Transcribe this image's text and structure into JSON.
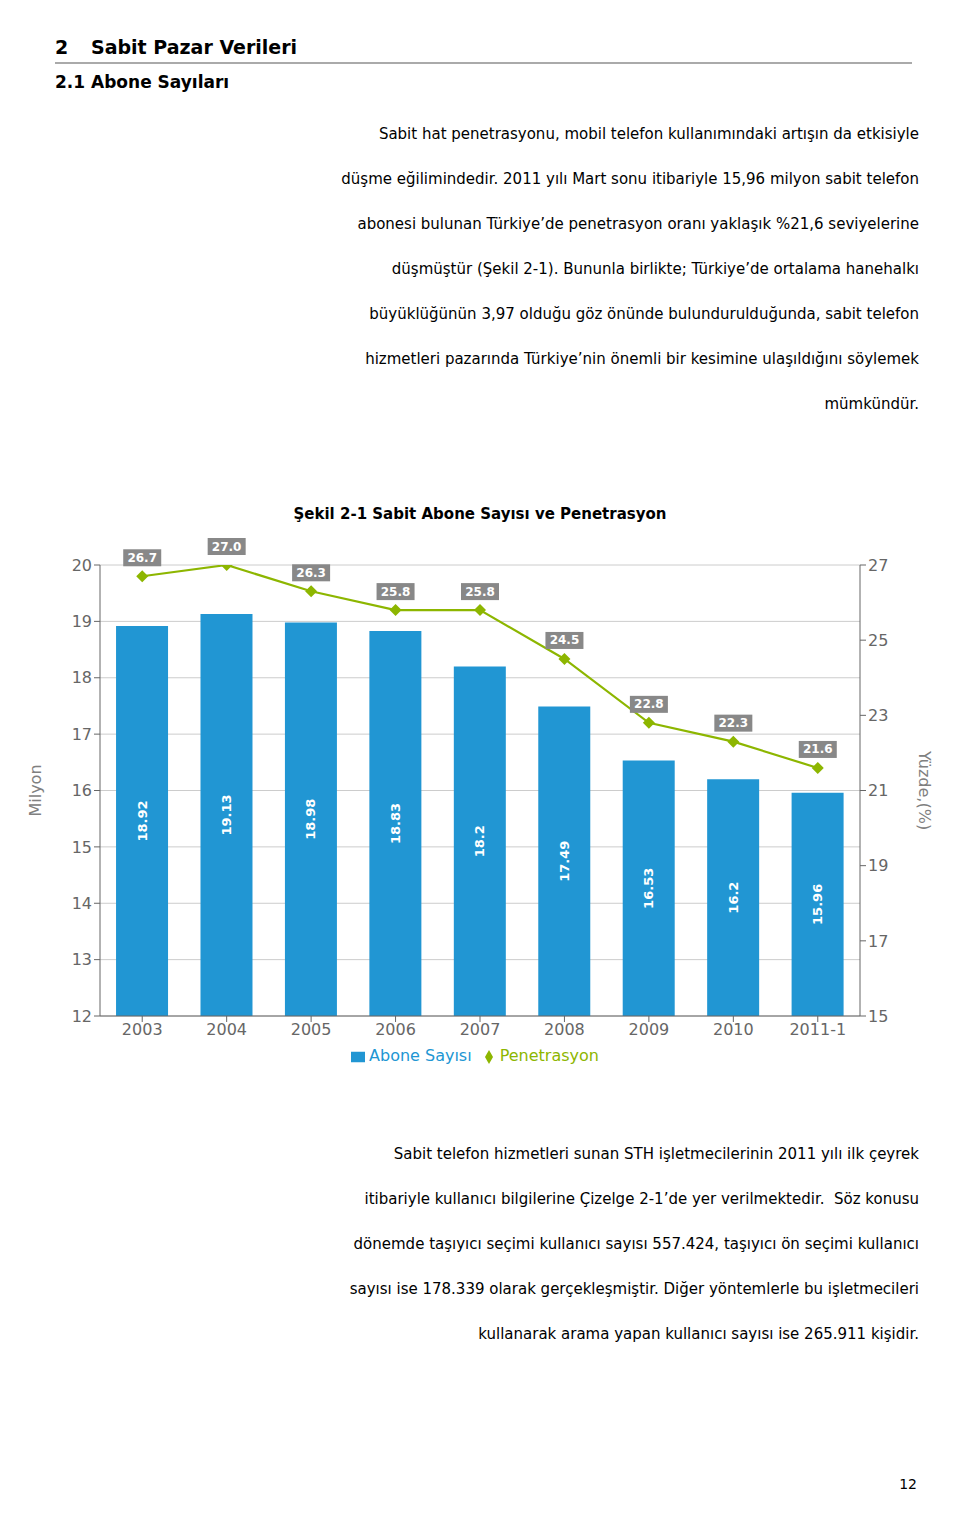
{
  "chart_data": {
    "type": "bar",
    "title": "Şekil 2-1 Sabit Abone Sayısı ve Penetrasyon",
    "categories": [
      "2003",
      "2004",
      "2005",
      "2006",
      "2007",
      "2008",
      "2009",
      "2010",
      "2011-1"
    ],
    "series": [
      {
        "name": "Abone Sayısı",
        "type": "bar",
        "color": "#2196d3",
        "values": [
          18.92,
          19.13,
          18.98,
          18.83,
          18.2,
          17.49,
          16.53,
          16.2,
          15.96
        ]
      },
      {
        "name": "Penetrasyon",
        "type": "line",
        "axis": "y2",
        "color": "#8db600",
        "marker": "diamond",
        "values": [
          26.7,
          27.0,
          26.3,
          25.8,
          25.8,
          24.5,
          22.8,
          22.3,
          21.6
        ],
        "value_labels": [
          "26.7",
          "27.0",
          "26.3",
          "25.8",
          "25.8",
          "24.5",
          "22.8",
          "22.3",
          "21.6"
        ]
      }
    ],
    "ylabel": "Milyon",
    "y2label": "Yüzde,(%)",
    "ylim": [
      12,
      20
    ],
    "yticks": [
      12,
      13,
      14,
      15,
      16,
      17,
      18,
      19,
      20
    ],
    "y2lim": [
      15,
      27
    ],
    "y2ticks": [
      15,
      17,
      19,
      21,
      23,
      25,
      27
    ],
    "grid": true,
    "legend": "bottom",
    "data_labels": true,
    "annotations": [
      "2",
      "Sabit Pazar Verileri",
      "2.1 Abone Sayıları",
      "Sabit hat penetrasyonu, mobil telefon kullanımındaki artışın da etkisiyle",
      "düşme eğilimindedir. 2011 yılı Mart sonu itibariyle 15,96 milyon sabit telefon",
      "abonesi bulunan Türkiye’de penetrasyon oranı yaklaşık %21,6 seviyelerine",
      "düşmüştür (Şekil 2-1). Bununla birlikte; Türkiye’de ortalama hanehalkı",
      "büyüklüğünün 3,97 olduğu göz önünde bulundurulduğunda, sabit telefon",
      "hizmetleri pazarında Türkiye’nin önemli bir kesimine ulaşıldığını söylemek",
      "mümkündür.",
      "Sabit telefon hizmetleri sunan STH işletmecilerinin 2011 yılı ilk çeyrek",
      "itibariyle kullanıcı bilgilerine Çizelge 2-1’de yer verilmektedir.  Söz konusu",
      "dönemde taşıyıcı seçimi kullanıcı sayısı 557.424, taşıyıcı ön seçimi kullanıcı",
      "sayısı ise 178.339 olarak gerçekleşmiştir. Diğer yöntemlerle bu işletmecileri",
      "kullanarak arama yapan kullanıcı sayısı ise 265.911 kişidir.",
      "12"
    ]
  }
}
